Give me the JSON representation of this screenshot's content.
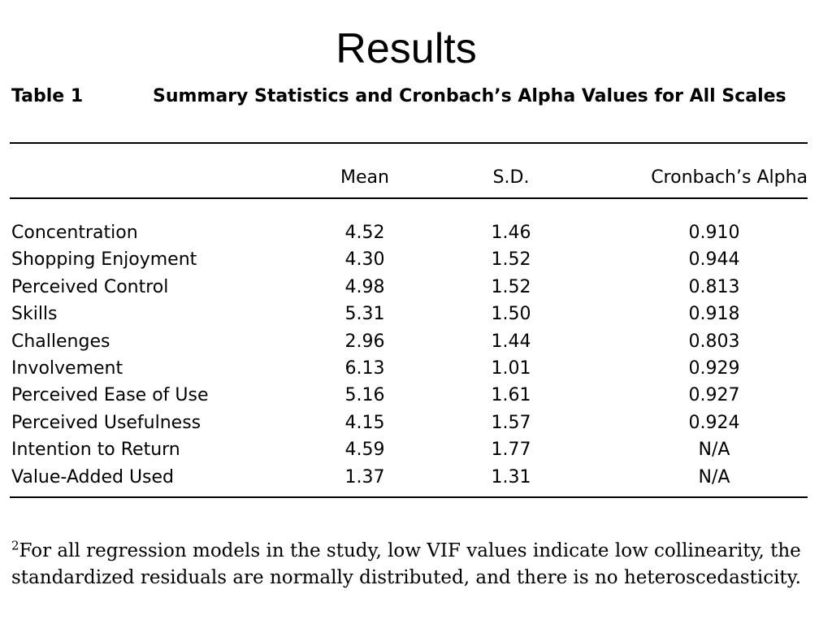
{
  "slide": {
    "title": "Results"
  },
  "table": {
    "label": "Table 1",
    "caption": "Summary Statistics and Cronbach’s Alpha Values for All Scales",
    "headers": {
      "mean": "Mean",
      "sd": "S.D.",
      "alpha": "Cronbach’s Alpha"
    },
    "rows": [
      {
        "label": "Concentration",
        "mean": "4.52",
        "sd": "1.46",
        "alpha": "0.910"
      },
      {
        "label": "Shopping Enjoyment",
        "mean": "4.30",
        "sd": "1.52",
        "alpha": "0.944"
      },
      {
        "label": "Perceived Control",
        "mean": "4.98",
        "sd": "1.52",
        "alpha": "0.813"
      },
      {
        "label": "Skills",
        "mean": "5.31",
        "sd": "1.50",
        "alpha": "0.918"
      },
      {
        "label": "Challenges",
        "mean": "2.96",
        "sd": "1.44",
        "alpha": "0.803"
      },
      {
        "label": "Involvement",
        "mean": "6.13",
        "sd": "1.01",
        "alpha": "0.929"
      },
      {
        "label": "Perceived Ease of Use",
        "mean": "5.16",
        "sd": "1.61",
        "alpha": "0.927"
      },
      {
        "label": "Perceived Usefulness",
        "mean": "4.15",
        "sd": "1.57",
        "alpha": "0.924"
      },
      {
        "label": "Intention to Return",
        "mean": "4.59",
        "sd": "1.77",
        "alpha": "N/A"
      },
      {
        "label": "Value-Added Used",
        "mean": "1.37",
        "sd": "1.31",
        "alpha": "N/A"
      }
    ]
  },
  "footnote": {
    "marker": "2",
    "text": "For all regression models in the study, low VIF values indicate low collinearity, the standardized residuals are normally distributed, and there is no heteroscedasticity."
  }
}
